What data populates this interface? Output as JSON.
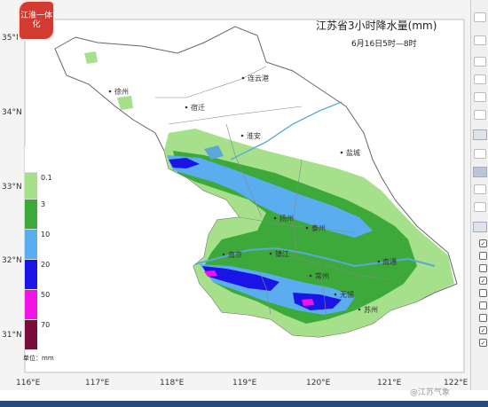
{
  "map": {
    "title": "江苏省3小时降水量(mm)",
    "subtitle": "6月16日5时—8时",
    "unit": "单位：mm",
    "logo_text": "江淮一体化",
    "lon_labels": [
      "116°E",
      "117°E",
      "118°E",
      "119°E",
      "120°E",
      "121°E",
      "122°E"
    ],
    "lat_labels": [
      "35°N",
      "34°N",
      "33°N",
      "32°N",
      "31°N"
    ],
    "cities": [
      {
        "name": "连云港"
      },
      {
        "name": "徐州"
      },
      {
        "name": "宿迁"
      },
      {
        "name": "淮安"
      },
      {
        "name": "盐城"
      },
      {
        "name": "扬州"
      },
      {
        "name": "泰州"
      },
      {
        "name": "镇江"
      },
      {
        "name": "南京"
      },
      {
        "name": "南通"
      },
      {
        "name": "常州"
      },
      {
        "name": "无锡"
      },
      {
        "name": "苏州"
      }
    ],
    "legend": [
      {
        "label": "0.1",
        "color": "#ffffff"
      },
      {
        "label": "3",
        "color": "#a6e08a"
      },
      {
        "label": "10",
        "color": "#3da93a"
      },
      {
        "label": "20",
        "color": "#5aaef0"
      },
      {
        "label": "50",
        "color": "#1b14e6"
      },
      {
        "label": "70",
        "color": "#f213e6"
      },
      {
        "label": "",
        "color": "#7a0c3c"
      }
    ],
    "colors": {
      "land": "#ffffff",
      "border": "#777777",
      "river": "#5aa8d8"
    }
  },
  "watermark": "@江苏气象",
  "right_panel_icon": "checkbox-icon"
}
